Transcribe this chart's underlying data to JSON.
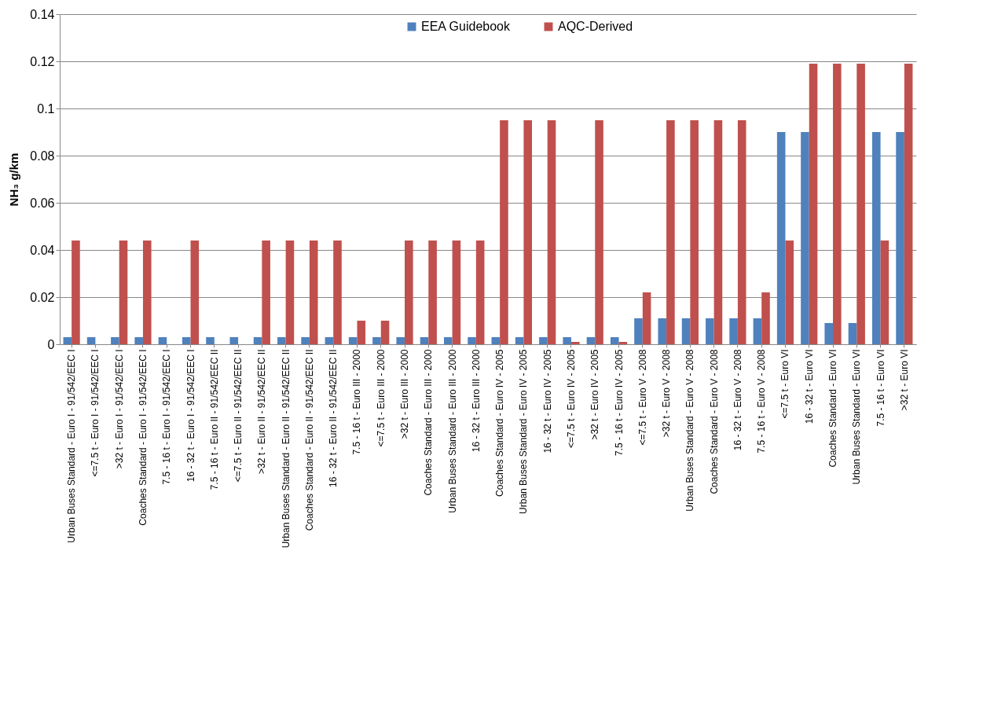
{
  "chart_data": {
    "type": "bar",
    "ylabel": "NH₃ g/km",
    "categories": [
      "Urban Buses Standard - Euro I - 91/542/EEC I",
      "<=7.5 t - Euro I - 91/542/EEC I",
      ">32 t - Euro I - 91/542/EEC I",
      "Coaches Standard - Euro I - 91/542/EEC I",
      "7.5 - 16 t - Euro I - 91/542/EEC I",
      "16 - 32 t - Euro I - 91/542/EEC I",
      "7.5 - 16 t - Euro II - 91/542/EEC II",
      "<=7.5 t - Euro II - 91/542/EEC II",
      ">32 t - Euro II - 91/542/EEC II",
      "Urban Buses Standard - Euro II - 91/542/EEC II",
      "Coaches Standard - Euro II - 91/542/EEC II",
      "16 - 32 t - Euro II - 91/542/EEC II",
      "7.5 - 16 t - Euro III - 2000",
      "<=7.5 t - Euro III - 2000",
      ">32 t - Euro III - 2000",
      "Coaches Standard - Euro III - 2000",
      "Urban Buses Standard - Euro III - 2000",
      "16 - 32 t - Euro III - 2000",
      "Coaches Standard - Euro IV - 2005",
      "Urban Buses Standard - Euro IV - 2005",
      "16 - 32 t - Euro IV - 2005",
      "<=7.5 t - Euro IV - 2005",
      ">32 t - Euro IV - 2005",
      "7.5 - 16 t - Euro IV - 2005",
      "<=7.5 t - Euro V - 2008",
      ">32 t - Euro V - 2008",
      "Urban Buses Standard - Euro V - 2008",
      "Coaches Standard - Euro V - 2008",
      "16 - 32 t - Euro V - 2008",
      "7.5 - 16 t - Euro V - 2008",
      "<=7.5 t - Euro VI",
      "16 - 32 t - Euro VI",
      "Coaches Standard - Euro VI",
      "Urban Buses Standard - Euro VI",
      "7.5 - 16 t - Euro VI",
      ">32 t - Euro VI"
    ],
    "series": [
      {
        "name": "EEA Guidebook",
        "color": "#4f81bd",
        "values": [
          0.003,
          0.003,
          0.003,
          0.003,
          0.003,
          0.003,
          0.003,
          0.003,
          0.003,
          0.003,
          0.003,
          0.003,
          0.003,
          0.003,
          0.003,
          0.003,
          0.003,
          0.003,
          0.003,
          0.003,
          0.003,
          0.003,
          0.003,
          0.003,
          0.011,
          0.011,
          0.011,
          0.011,
          0.011,
          0.011,
          0.09,
          0.09,
          0.009,
          0.009,
          0.09,
          0.09
        ]
      },
      {
        "name": "AQC-Derived",
        "color": "#c0504d",
        "values": [
          0.044,
          0,
          0.044,
          0.044,
          0,
          0.044,
          0,
          0,
          0.044,
          0.044,
          0.044,
          0.044,
          0.01,
          0.01,
          0.044,
          0.044,
          0.044,
          0.044,
          0.095,
          0.095,
          0.095,
          0.001,
          0.095,
          0.001,
          0.022,
          0.095,
          0.095,
          0.095,
          0.095,
          0.022,
          0.044,
          0.119,
          0.119,
          0.119,
          0.044,
          0.119
        ]
      }
    ],
    "ylim": [
      0,
      0.14
    ],
    "yticks": [
      0,
      0.02,
      0.04,
      0.06,
      0.08,
      0.1,
      0.12,
      0.14
    ],
    "grid": "y",
    "legend": "top"
  }
}
